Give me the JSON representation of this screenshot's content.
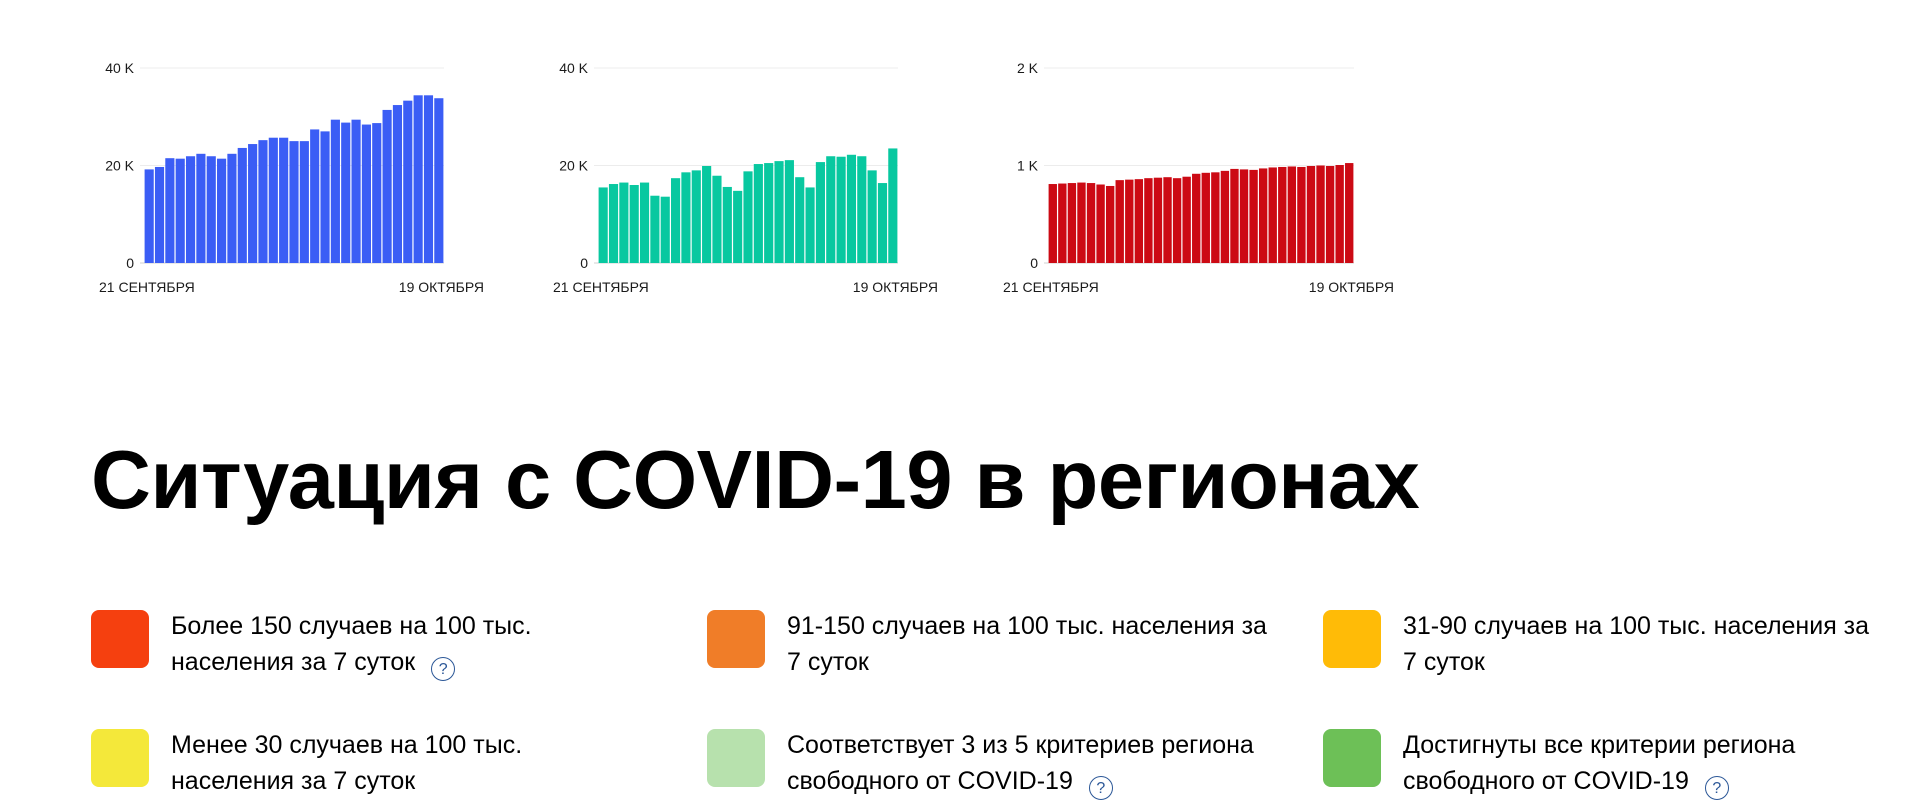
{
  "chart_data": [
    {
      "type": "bar",
      "color": "#3b5df5",
      "ylim": [
        0,
        40000
      ],
      "ytick_labels": [
        "0",
        "20 K",
        "40 K"
      ],
      "xtick_labels": [
        "21 СЕНТЯБРЯ",
        "19 ОКТЯБРЯ"
      ],
      "values": [
        19200,
        19700,
        21500,
        21400,
        21900,
        22400,
        21900,
        21400,
        22400,
        23600,
        24400,
        25200,
        25700,
        25700,
        25000,
        25000,
        27400,
        27000,
        29400,
        28800,
        29400,
        28400,
        28700,
        31400,
        32400,
        33300,
        34400,
        34400,
        33800
      ]
    },
    {
      "type": "bar",
      "color": "#08c8a0",
      "ylim": [
        0,
        40000
      ],
      "ytick_labels": [
        "0",
        "20 K",
        "40 K"
      ],
      "xtick_labels": [
        "21 СЕНТЯБРЯ",
        "19 ОКТЯБРЯ"
      ],
      "values": [
        15500,
        16200,
        16500,
        16000,
        16500,
        13800,
        13600,
        17400,
        18600,
        19000,
        19900,
        17900,
        15600,
        14800,
        18800,
        20300,
        20500,
        20900,
        21100,
        17600,
        15500,
        20700,
        21900,
        21800,
        22200,
        21900,
        19000,
        16400,
        23500
      ]
    },
    {
      "type": "bar",
      "color": "#cc0a14",
      "ylim": [
        0,
        2000
      ],
      "ytick_labels": [
        "0",
        "1 K",
        "2 K"
      ],
      "xtick_labels": [
        "21 СЕНТЯБРЯ",
        "19 ОКТЯБРЯ"
      ],
      "values": [
        810,
        815,
        820,
        825,
        820,
        805,
        790,
        850,
        855,
        860,
        870,
        875,
        880,
        870,
        885,
        915,
        925,
        930,
        945,
        965,
        960,
        955,
        970,
        980,
        985,
        990,
        985,
        995,
        1000,
        995,
        1005,
        1025
      ]
    }
  ],
  "section_title": "Ситуация с COVID-19 в регионах",
  "legend": [
    {
      "color": "#f5400f",
      "text": "Более 150 случаев на 100 тыс. населения за 7 суток",
      "help": "?"
    },
    {
      "color": "#f07d28",
      "text": "91-150 случаев на 100 тыс. населения за 7 суток",
      "help": ""
    },
    {
      "color": "#ffbb07",
      "text": "31-90 случаев на 100 тыс. населения за 7 суток",
      "help": ""
    },
    {
      "color": "#f4e83a",
      "text": "Менее 30 случаев на 100 тыс. населения за 7 суток",
      "help": ""
    },
    {
      "color": "#b7e1ad",
      "text": "Соответствует 3 из 5 критериев региона свободного от COVID-19",
      "help": "?"
    },
    {
      "color": "#6dc057",
      "text": "Достигнуты все критерии региона свободного от COVID-19",
      "help": "?"
    }
  ]
}
